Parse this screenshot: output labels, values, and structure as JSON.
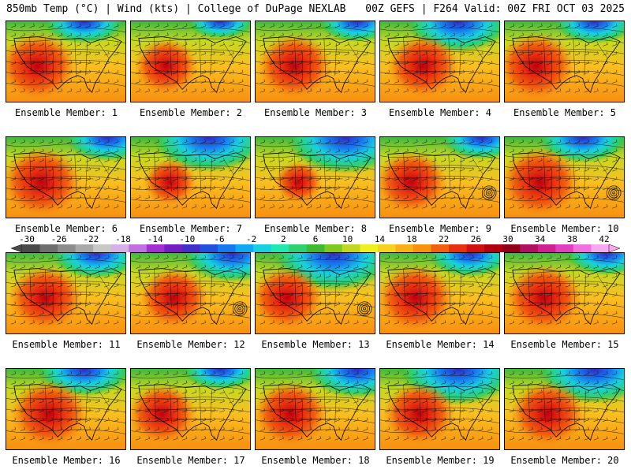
{
  "header": {
    "left": "850mb Temp (°C) | Wind (kts) | College of DuPage NEXLAB",
    "right": "00Z GEFS | F264 Valid: 00Z FRI OCT 03 2025"
  },
  "colorbar": {
    "labels": [
      "-30",
      "-26",
      "-22",
      "-18",
      "-14",
      "-10",
      "-6",
      "-2",
      "2",
      "6",
      "10",
      "14",
      "18",
      "22",
      "26",
      "30",
      "34",
      "38",
      "42"
    ],
    "colors": [
      "#4a4a4a",
      "#6e6e6e",
      "#8c8c8c",
      "#a9a9a9",
      "#c8c8c8",
      "#d8b0e8",
      "#c070e0",
      "#a030d0",
      "#7020c0",
      "#4030c8",
      "#2050e0",
      "#1878f0",
      "#10a8f0",
      "#18d0e0",
      "#20e8b0",
      "#30d070",
      "#40b830",
      "#80c820",
      "#c0d820",
      "#f0f020",
      "#f8d020",
      "#f8b018",
      "#f89010",
      "#f06010",
      "#e83010",
      "#d01010",
      "#b00010",
      "#900018",
      "#b01060",
      "#d02090",
      "#e040c0",
      "#f070e0",
      "#f8a8f0"
    ]
  },
  "members": [
    {
      "caption": "Ensemble Member: 1",
      "warm": 0.85,
      "cold": 0.2,
      "hurricane": false
    },
    {
      "caption": "Ensemble Member: 2",
      "warm": 0.6,
      "cold": 0.05,
      "hurricane": false
    },
    {
      "caption": "Ensemble Member: 3",
      "warm": 0.8,
      "cold": 0.15,
      "hurricane": false
    },
    {
      "caption": "Ensemble Member: 4",
      "warm": 0.75,
      "cold": 0.45,
      "hurricane": false
    },
    {
      "caption": "Ensemble Member: 5",
      "warm": 0.85,
      "cold": 0.2,
      "hurricane": false
    },
    {
      "caption": "Ensemble Member: 6",
      "warm": 0.9,
      "cold": 0.25,
      "hurricane": false
    },
    {
      "caption": "Ensemble Member: 7",
      "warm": 0.4,
      "cold": 0.55,
      "hurricane": false
    },
    {
      "caption": "Ensemble Member: 8",
      "warm": 0.3,
      "cold": 0.6,
      "hurricane": false
    },
    {
      "caption": "Ensemble Member: 9",
      "warm": 0.75,
      "cold": 0.2,
      "hurricane": true
    },
    {
      "caption": "Ensemble Member: 10",
      "warm": 0.9,
      "cold": 0.3,
      "hurricane": true
    },
    {
      "caption": "Ensemble Member: 11",
      "warm": 0.8,
      "cold": 0.3,
      "hurricane": false
    },
    {
      "caption": "Ensemble Member: 12",
      "warm": 0.7,
      "cold": 0.4,
      "hurricane": true
    },
    {
      "caption": "Ensemble Member: 13",
      "warm": 0.75,
      "cold": 0.65,
      "hurricane": true
    },
    {
      "caption": "Ensemble Member: 14",
      "warm": 0.85,
      "cold": 0.25,
      "hurricane": false
    },
    {
      "caption": "Ensemble Member: 15",
      "warm": 0.85,
      "cold": 0.2,
      "hurricane": false
    },
    {
      "caption": "Ensemble Member: 16",
      "warm": 0.85,
      "cold": 0.35,
      "hurricane": false
    },
    {
      "caption": "Ensemble Member: 17",
      "warm": 0.7,
      "cold": 0.15,
      "hurricane": false
    },
    {
      "caption": "Ensemble Member: 18",
      "warm": 0.8,
      "cold": 0.4,
      "hurricane": false
    },
    {
      "caption": "Ensemble Member: 19",
      "warm": 0.75,
      "cold": 0.6,
      "hurricane": false
    },
    {
      "caption": "Ensemble Member: 20",
      "warm": 0.8,
      "cold": 0.55,
      "hurricane": false
    }
  ]
}
